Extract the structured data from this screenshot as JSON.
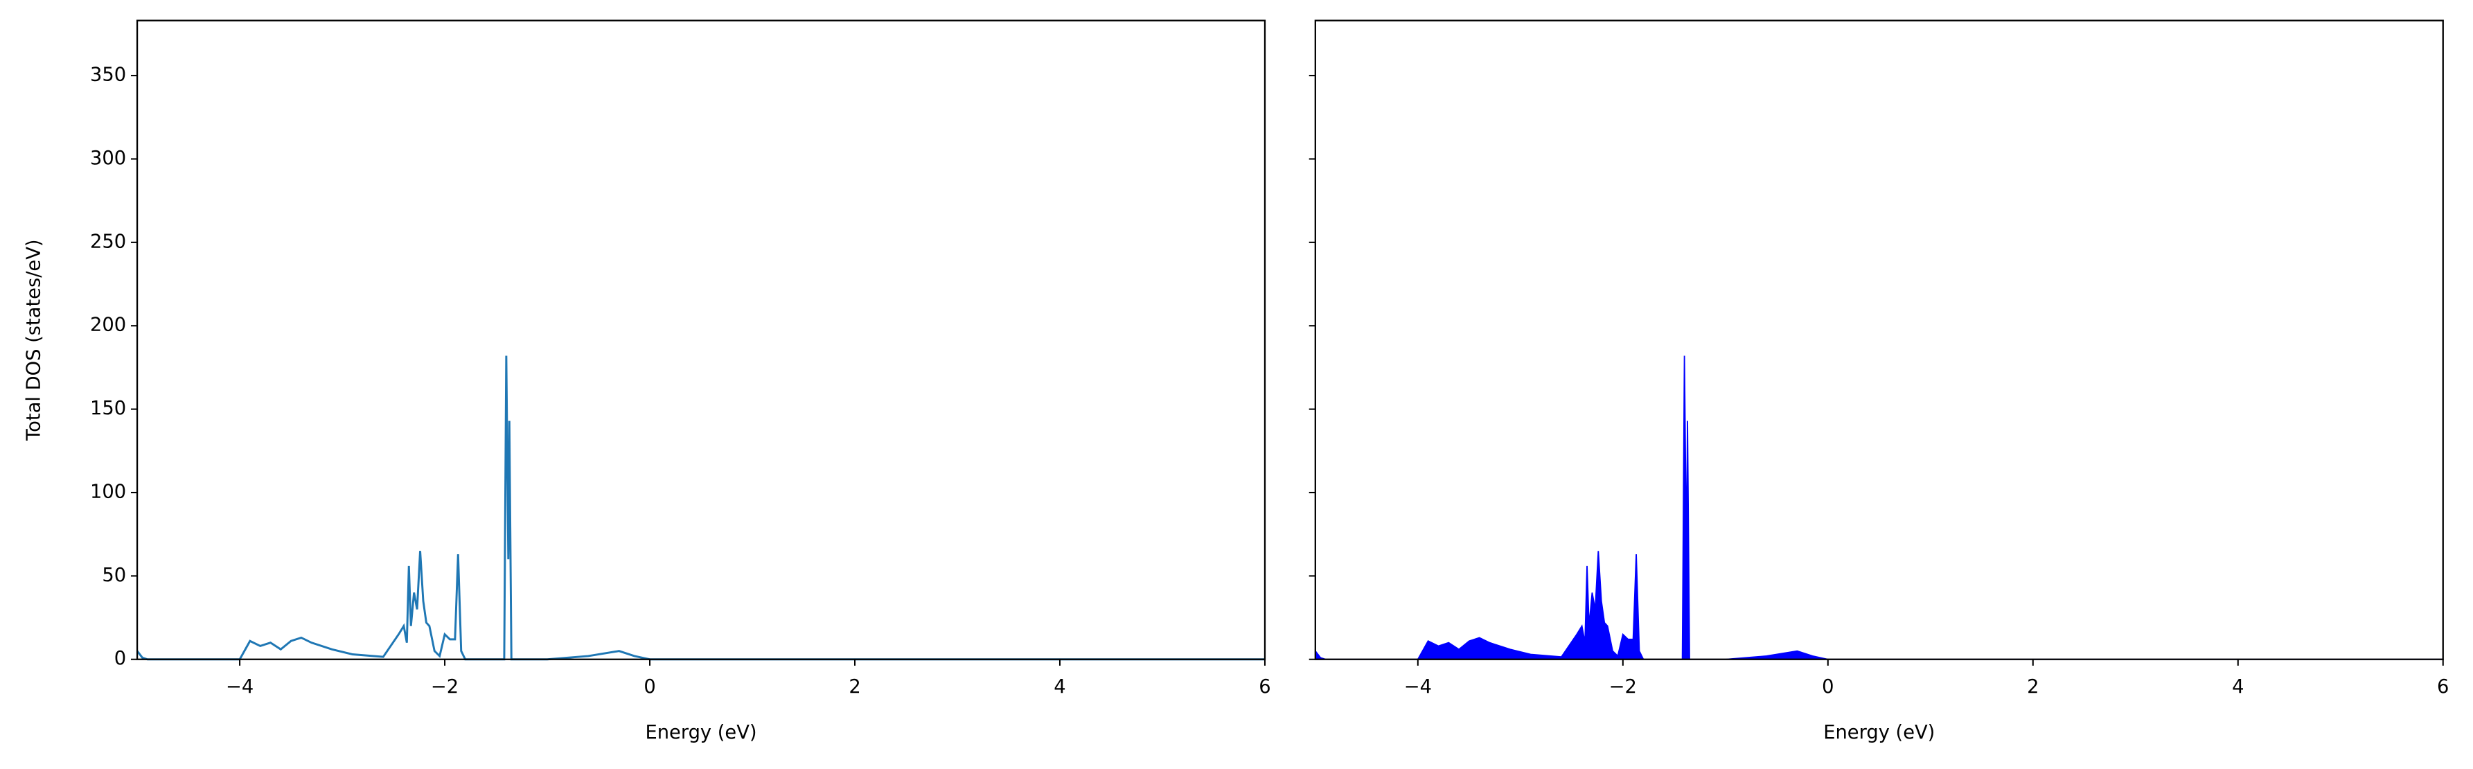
{
  "chart_data": [
    {
      "type": "line",
      "color": "#1f77b4",
      "xlabel": "Energy (eV)",
      "ylabel": "Total DOS (states/eV)",
      "xlim": [
        -5,
        6
      ],
      "ylim": [
        0,
        383
      ],
      "xticks": [
        {
          "value": -4,
          "label": "−4"
        },
        {
          "value": -2,
          "label": "−2"
        },
        0,
        2,
        4,
        6
      ],
      "yticks": [
        0,
        50,
        100,
        150,
        200,
        250,
        300,
        350
      ],
      "x": [
        -5,
        -4.95,
        -4.9,
        -4.0,
        -3.9,
        -3.8,
        -3.7,
        -3.6,
        -3.5,
        -3.4,
        -3.3,
        -3.1,
        -2.9,
        -2.6,
        -2.45,
        -2.4,
        -2.37,
        -2.35,
        -2.33,
        -2.3,
        -2.27,
        -2.24,
        -2.21,
        -2.18,
        -2.15,
        -2.1,
        -2.05,
        -2.0,
        -1.95,
        -1.9,
        -1.87,
        -1.84,
        -1.8,
        -1.42,
        -1.4,
        -1.38,
        -1.37,
        -1.35,
        -1.0,
        -0.6,
        -0.3,
        -0.15,
        0,
        6
      ],
      "values": [
        5,
        1,
        0,
        0,
        11,
        8,
        10,
        6,
        11,
        13,
        10,
        6,
        3,
        1.5,
        15,
        20,
        10,
        56,
        20,
        40,
        30,
        65,
        35,
        22,
        20,
        5,
        2,
        15,
        12,
        12,
        63,
        5,
        0,
        0,
        182,
        60,
        143,
        0,
        0,
        2,
        5,
        2,
        0,
        0
      ]
    },
    {
      "type": "area",
      "color": "#0000ff",
      "xlabel": "Energy (eV)",
      "xlim": [
        -5,
        6
      ],
      "ylim": [
        0,
        383
      ],
      "xticks": [
        {
          "value": -4,
          "label": "−4"
        },
        {
          "value": -2,
          "label": "−2"
        },
        0,
        2,
        4,
        6
      ],
      "yticks": [
        0,
        50,
        100,
        150,
        200,
        250,
        300,
        350
      ],
      "x": [
        -5,
        -4.95,
        -4.9,
        -4.0,
        -3.9,
        -3.8,
        -3.7,
        -3.6,
        -3.5,
        -3.4,
        -3.3,
        -3.1,
        -2.9,
        -2.6,
        -2.45,
        -2.4,
        -2.37,
        -2.35,
        -2.33,
        -2.3,
        -2.27,
        -2.24,
        -2.21,
        -2.18,
        -2.15,
        -2.1,
        -2.05,
        -2.0,
        -1.95,
        -1.9,
        -1.87,
        -1.84,
        -1.8,
        -1.42,
        -1.4,
        -1.38,
        -1.37,
        -1.35,
        -1.0,
        -0.6,
        -0.3,
        -0.15,
        0,
        6
      ],
      "values": [
        5,
        1,
        0,
        0,
        11,
        8,
        10,
        6,
        11,
        13,
        10,
        6,
        3,
        1.5,
        15,
        20,
        10,
        56,
        20,
        40,
        30,
        65,
        35,
        22,
        20,
        5,
        2,
        15,
        12,
        12,
        63,
        5,
        0,
        0,
        182,
        60,
        143,
        0,
        0,
        2,
        5,
        2,
        0,
        0
      ]
    }
  ]
}
